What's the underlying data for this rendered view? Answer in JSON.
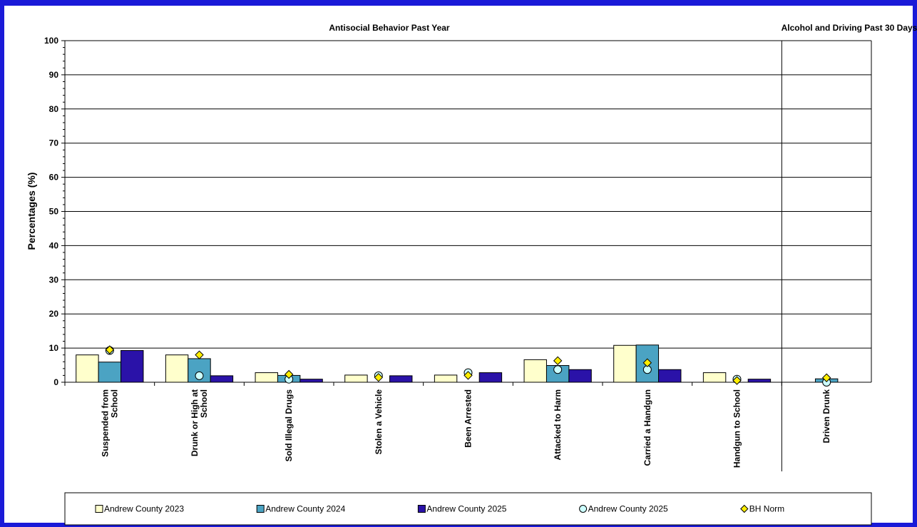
{
  "chart_data": {
    "type": "bar",
    "section_titles": [
      "Antisocial Behavior Past Year",
      "Alcohol and Driving Past 30 Days"
    ],
    "ylabel": "Percentages (%)",
    "ylim": [
      0,
      100
    ],
    "yticks": [
      0,
      10,
      20,
      30,
      40,
      50,
      60,
      70,
      80,
      90,
      100
    ],
    "grid": true,
    "legend_position": "bottom",
    "categories": [
      "Suspended from School",
      "Drunk or High at School",
      "Sold Illegal Drugs",
      "Stolen a Vehicle",
      "Been Arrested",
      "Attacked to Harm",
      "Carried a Handgun",
      "Handgun to School",
      "Driven Drunk"
    ],
    "category_label_lines": [
      [
        "Suspended from",
        "School"
      ],
      [
        "Drunk or High at",
        "School"
      ],
      [
        "Sold Illegal Drugs"
      ],
      [
        "Stolen a Vehicle"
      ],
      [
        "Been Arrested"
      ],
      [
        "Attacked to Harm"
      ],
      [
        "Carried a Handgun"
      ],
      [
        "Handgun to School"
      ],
      [
        "Driven Drunk"
      ]
    ],
    "series": [
      {
        "name": "Andrew County 2023",
        "kind": "bar",
        "color": "#ffffcc",
        "values": [
          8.0,
          8.0,
          2.8,
          2.1,
          2.1,
          6.6,
          10.8,
          2.8,
          0
        ]
      },
      {
        "name": "Andrew County 2024",
        "kind": "bar",
        "color": "#4ba3c3",
        "values": [
          5.9,
          6.9,
          2.0,
          0,
          0,
          4.9,
          10.9,
          0,
          1.0
        ]
      },
      {
        "name": "Andrew County 2025",
        "kind": "bar",
        "color": "#2a12a8",
        "values": [
          9.3,
          1.9,
          0.9,
          1.9,
          2.8,
          3.7,
          3.7,
          0.9,
          0
        ]
      },
      {
        "name": "Andrew County 2025",
        "kind": "marker-circle",
        "color": "#ccffff",
        "values": [
          9.3,
          1.9,
          0.9,
          1.9,
          2.8,
          3.7,
          3.7,
          0.9,
          0
        ]
      },
      {
        "name": "BH Norm",
        "kind": "marker-diamond",
        "color": "#ffee00",
        "values": [
          9.5,
          8.0,
          2.3,
          1.4,
          2.0,
          6.3,
          5.7,
          0.5,
          1.3
        ]
      }
    ]
  }
}
